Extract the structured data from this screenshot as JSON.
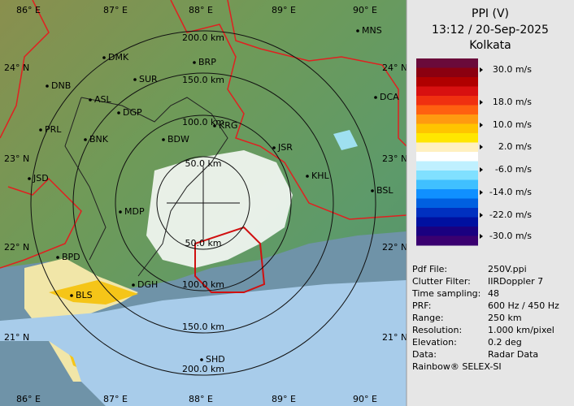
{
  "header": {
    "title": "PPI (V)",
    "time": "13:12 / 20-Sep-2025",
    "site": "Kolkata"
  },
  "legend": {
    "labels": [
      "30.0 m/s",
      "18.0 m/s",
      "10.0 m/s",
      "2.0 m/s",
      "-6.0 m/s",
      "-14.0 m/s",
      "-22.0 m/s",
      "-30.0 m/s"
    ]
  },
  "info": [
    {
      "key": "Pdf File:",
      "value": "250V.ppi"
    },
    {
      "key": "Clutter Filter:",
      "value": "IIRDoppler 7"
    },
    {
      "key": "Time sampling:",
      "value": "48"
    },
    {
      "key": "PRF:",
      "value": "600 Hz / 450 Hz"
    },
    {
      "key": "Range:",
      "value": "250 km"
    },
    {
      "key": "Resolution:",
      "value": "1.000 km/pixel"
    },
    {
      "key": "Elevation:",
      "value": "0.2 deg"
    },
    {
      "key": "Data:",
      "value": "Radar Data"
    }
  ],
  "footer": "Rainbow® SELEX-SI",
  "map": {
    "lon_labels": [
      "86° E",
      "87° E",
      "88° E",
      "89° E",
      "90° E"
    ],
    "lat_labels": [
      "24° N",
      "23° N",
      "22° N",
      "21° N"
    ],
    "range_labels": [
      "50.0 km",
      "100.0 km",
      "150.0 km",
      "200.0 km"
    ],
    "stations": [
      "MNS",
      "DMK",
      "BRP",
      "DNB",
      "SUR",
      "DCA",
      "ASL",
      "DGP",
      "KRG",
      "PRL",
      "BNK",
      "BDW",
      "JSR",
      "KHL",
      "JSD",
      "BSL",
      "MDP",
      "BPD",
      "DGH",
      "BLS",
      "SHD"
    ]
  }
}
